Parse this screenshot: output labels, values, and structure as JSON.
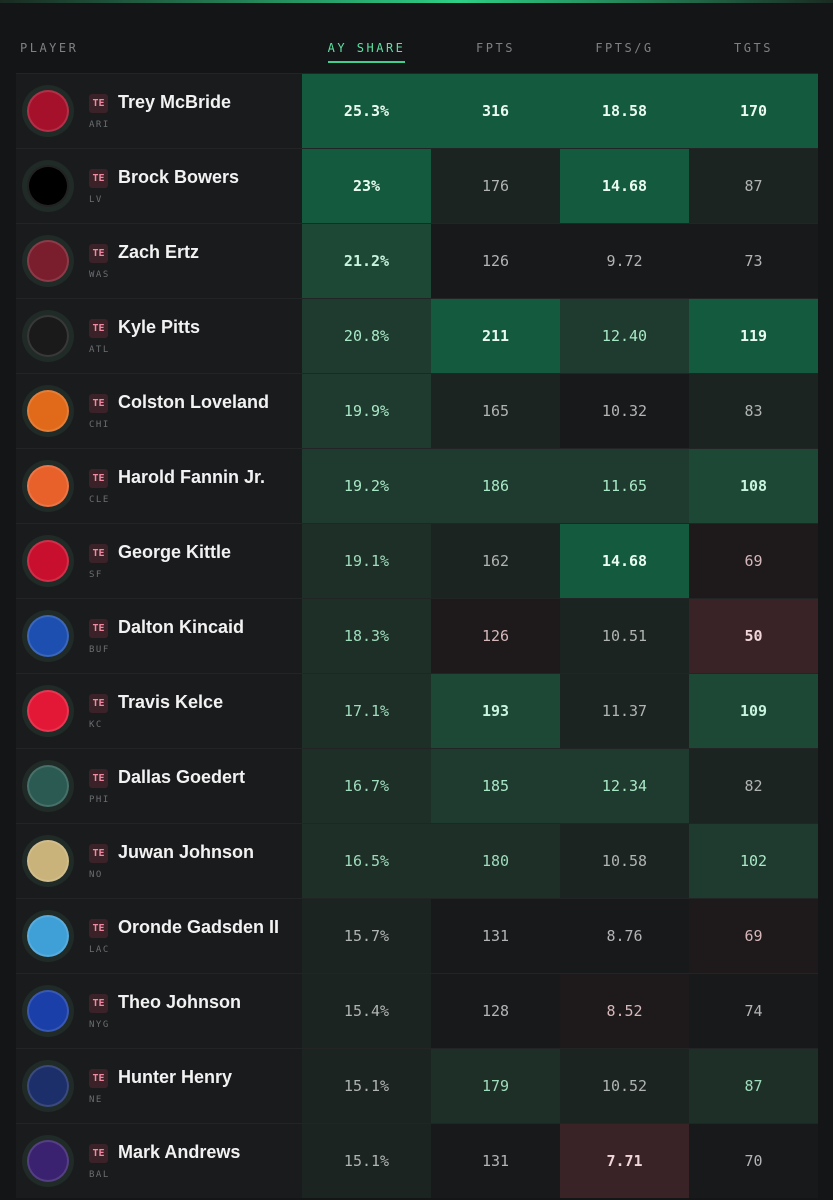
{
  "header": {
    "player": "PLAYER",
    "columns": [
      {
        "label": "AY SHARE",
        "active": true
      },
      {
        "label": "FPTS",
        "active": false
      },
      {
        "label": "FPTS/G",
        "active": false
      },
      {
        "label": "TGTS",
        "active": false
      }
    ]
  },
  "rows": [
    {
      "name": "Trey McBride",
      "pos": "TE",
      "team": "ARI",
      "logo_icon": "cardinals-logo-icon",
      "logo_color": "#a5112b",
      "ay": "25.3%",
      "fpts": "316",
      "fpg": "18.58",
      "tgts": "170",
      "tiers": {
        "ay": 4,
        "fpts": 4,
        "fpg": 4,
        "tgts": 4
      }
    },
    {
      "name": "Brock Bowers",
      "pos": "TE",
      "team": "LV",
      "logo_icon": "raiders-logo-icon",
      "logo_color": "#000000",
      "ay": "23%",
      "fpts": "176",
      "fpg": "14.68",
      "tgts": "87",
      "tiers": {
        "ay": 4,
        "fpts": 0,
        "fpg": 4,
        "tgts": 0
      }
    },
    {
      "name": "Zach Ertz",
      "pos": "TE",
      "team": "WAS",
      "logo_icon": "commanders-logo-icon",
      "logo_color": "#7a1d2c",
      "ay": "21.2%",
      "fpts": "126",
      "fpg": "9.72",
      "tgts": "73",
      "tiers": {
        "ay": 3,
        "fpts": -1,
        "fpg": -1,
        "tgts": -1
      }
    },
    {
      "name": "Kyle Pitts",
      "pos": "TE",
      "team": "ATL",
      "logo_icon": "falcons-logo-icon",
      "logo_color": "#1a1a1a",
      "ay": "20.8%",
      "fpts": "211",
      "fpg": "12.40",
      "tgts": "119",
      "tiers": {
        "ay": 2,
        "fpts": 4,
        "fpg": 2,
        "tgts": 4
      }
    },
    {
      "name": "Colston Loveland",
      "pos": "TE",
      "team": "CHI",
      "logo_icon": "bears-logo-icon",
      "logo_color": "#e06a1a",
      "ay": "19.9%",
      "fpts": "165",
      "fpg": "10.32",
      "tgts": "83",
      "tiers": {
        "ay": 2,
        "fpts": 0,
        "fpg": -1,
        "tgts": 0
      }
    },
    {
      "name": "Harold Fannin Jr.",
      "pos": "TE",
      "team": "CLE",
      "logo_icon": "browns-logo-icon",
      "logo_color": "#e8602a",
      "ay": "19.2%",
      "fpts": "186",
      "fpg": "11.65",
      "tgts": "108",
      "tiers": {
        "ay": 2,
        "fpts": 2,
        "fpg": 2,
        "tgts": 3
      }
    },
    {
      "name": "George Kittle",
      "pos": "TE",
      "team": "SF",
      "logo_icon": "49ers-logo-icon",
      "logo_color": "#c8102e",
      "ay": "19.1%",
      "fpts": "162",
      "fpg": "14.68",
      "tgts": "69",
      "tiers": {
        "ay": 1,
        "fpts": 0,
        "fpg": 4,
        "tgts": -2
      }
    },
    {
      "name": "Dalton Kincaid",
      "pos": "TE",
      "team": "BUF",
      "logo_icon": "bills-logo-icon",
      "logo_color": "#1d4fb0",
      "ay": "18.3%",
      "fpts": "126",
      "fpg": "10.51",
      "tgts": "50",
      "tiers": {
        "ay": 1,
        "fpts": -2,
        "fpg": 0,
        "tgts": -3
      }
    },
    {
      "name": "Travis Kelce",
      "pos": "TE",
      "team": "KC",
      "logo_icon": "chiefs-logo-icon",
      "logo_color": "#e31837",
      "ay": "17.1%",
      "fpts": "193",
      "fpg": "11.37",
      "tgts": "109",
      "tiers": {
        "ay": 1,
        "fpts": 3,
        "fpg": 0,
        "tgts": 3
      }
    },
    {
      "name": "Dallas Goedert",
      "pos": "TE",
      "team": "PHI",
      "logo_icon": "eagles-logo-icon",
      "logo_color": "#2a5a52",
      "ay": "16.7%",
      "fpts": "185",
      "fpg": "12.34",
      "tgts": "82",
      "tiers": {
        "ay": 1,
        "fpts": 2,
        "fpg": 2,
        "tgts": 0
      }
    },
    {
      "name": "Juwan Johnson",
      "pos": "TE",
      "team": "NO",
      "logo_icon": "saints-logo-icon",
      "logo_color": "#c9b37a",
      "ay": "16.5%",
      "fpts": "180",
      "fpg": "10.58",
      "tgts": "102",
      "tiers": {
        "ay": 1,
        "fpts": 1,
        "fpg": 0,
        "tgts": 2
      }
    },
    {
      "name": "Oronde Gadsden II",
      "pos": "TE",
      "team": "LAC",
      "logo_icon": "chargers-logo-icon",
      "logo_color": "#3fa0d8",
      "ay": "15.7%",
      "fpts": "131",
      "fpg": "8.76",
      "tgts": "69",
      "tiers": {
        "ay": 0,
        "fpts": -1,
        "fpg": -1,
        "tgts": -2
      }
    },
    {
      "name": "Theo Johnson",
      "pos": "TE",
      "team": "NYG",
      "logo_icon": "giants-logo-icon",
      "logo_color": "#1b3fa8",
      "ay": "15.4%",
      "fpts": "128",
      "fpg": "8.52",
      "tgts": "74",
      "tiers": {
        "ay": 0,
        "fpts": -1,
        "fpg": -2,
        "tgts": -1
      }
    },
    {
      "name": "Hunter Henry",
      "pos": "TE",
      "team": "NE",
      "logo_icon": "patriots-logo-icon",
      "logo_color": "#1d2f6a",
      "ay": "15.1%",
      "fpts": "179",
      "fpg": "10.52",
      "tgts": "87",
      "tiers": {
        "ay": 0,
        "fpts": 1,
        "fpg": 0,
        "tgts": 1
      }
    },
    {
      "name": "Mark Andrews",
      "pos": "TE",
      "team": "BAL",
      "logo_icon": "ravens-logo-icon",
      "logo_color": "#3a2270",
      "ay": "15.1%",
      "fpts": "131",
      "fpg": "7.71",
      "tgts": "70",
      "tiers": {
        "ay": 0,
        "fpts": -1,
        "fpg": -3,
        "tgts": -1
      }
    }
  ],
  "tier_colors": {
    "4": {
      "bg": "#145a3e",
      "fg": "#e9fbf1",
      "bold": true
    },
    "3": {
      "bg": "#1d4836",
      "fg": "#c8f3dc",
      "bold": true
    },
    "2": {
      "bg": "#1f3a2f",
      "fg": "#a9e8c6",
      "bold": false
    },
    "1": {
      "bg": "#1e2f28",
      "fg": "#9fdcbc",
      "bold": false
    },
    "0": {
      "bg": "#1c2421",
      "fg": "#b0b4b2",
      "bold": false
    },
    "-1": {
      "bg": "#18191b",
      "fg": "#b4b4b4",
      "bold": false
    },
    "-2": {
      "bg": "#1e1a1c",
      "fg": "#d6b8bb",
      "bold": false
    },
    "-3": {
      "bg": "#3a2326",
      "fg": "#f0d6d8",
      "bold": true
    }
  }
}
